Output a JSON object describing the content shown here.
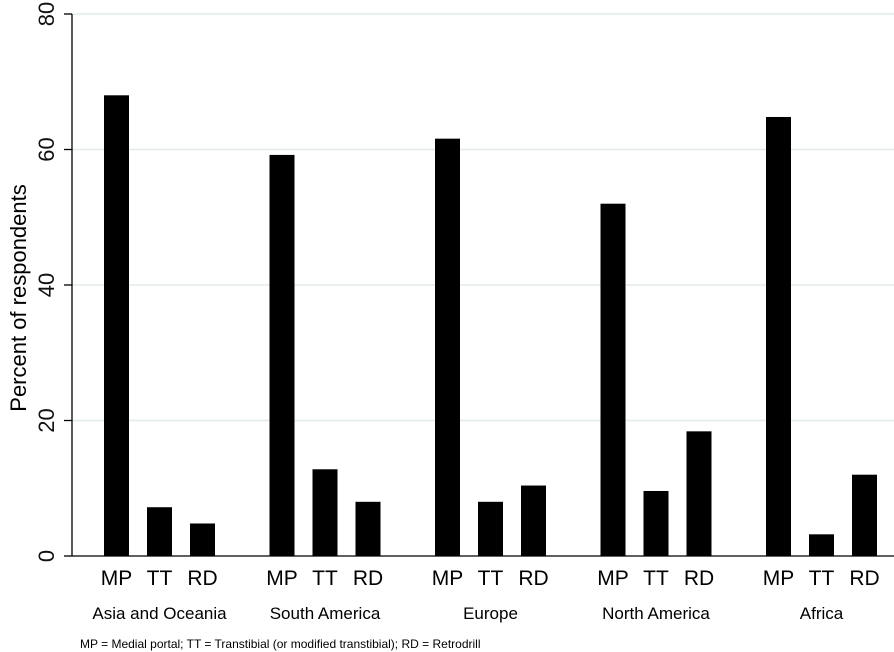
{
  "chart_data": {
    "type": "bar",
    "ylabel": "Percent of respondents",
    "ylim": [
      0,
      80
    ],
    "yticks": [
      0,
      20,
      40,
      60,
      80
    ],
    "grid": true,
    "groups": [
      {
        "name": "Asia and Oceania",
        "bars": [
          {
            "label": "MP",
            "value": 68
          },
          {
            "label": "TT",
            "value": 7.2
          },
          {
            "label": "RD",
            "value": 4.8
          }
        ]
      },
      {
        "name": "South America",
        "bars": [
          {
            "label": "MP",
            "value": 59.2
          },
          {
            "label": "TT",
            "value": 12.8
          },
          {
            "label": "RD",
            "value": 8
          }
        ]
      },
      {
        "name": "Europe",
        "bars": [
          {
            "label": "MP",
            "value": 61.6
          },
          {
            "label": "TT",
            "value": 8
          },
          {
            "label": "RD",
            "value": 10.4
          }
        ]
      },
      {
        "name": "North America",
        "bars": [
          {
            "label": "MP",
            "value": 52
          },
          {
            "label": "TT",
            "value": 9.6
          },
          {
            "label": "RD",
            "value": 18.4
          }
        ]
      },
      {
        "name": "Africa",
        "bars": [
          {
            "label": "MP",
            "value": 64.8
          },
          {
            "label": "TT",
            "value": 3.2
          },
          {
            "label": "RD",
            "value": 12
          }
        ]
      }
    ],
    "note": "MP = Medial portal; TT = Transtibial (or modified transtibial); RD = Retrodrill",
    "colors": {
      "bar": "#000000",
      "grid": "#e3ebe9",
      "axis": "#000000"
    }
  }
}
